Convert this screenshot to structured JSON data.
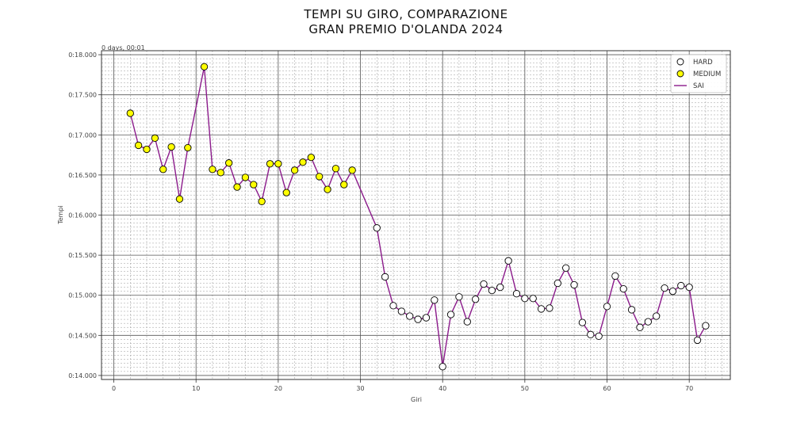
{
  "chart_data": {
    "type": "line",
    "title_line1": "TEMPI SU GIRO, COMPARAZIONE",
    "title_line2": "GRAN PREMIO D'OLANDA 2024",
    "xlabel": "Giri",
    "ylabel": "Tempi",
    "offset_label": "0 days, 00:01",
    "xlim": [
      -1.5,
      75
    ],
    "ylim": [
      13.95,
      18.05
    ],
    "x_ticks": [
      0,
      10,
      20,
      30,
      40,
      50,
      60,
      70
    ],
    "y_ticks": [
      14.0,
      14.5,
      15.0,
      15.5,
      16.0,
      16.5,
      17.0,
      17.5,
      18.0
    ],
    "y_tick_labels": [
      "0:14.000",
      "0:14.500",
      "0:15.000",
      "0:15.500",
      "0:16.000",
      "0:16.500",
      "0:17.000",
      "0:17.500",
      "0:18.000"
    ],
    "grid": true,
    "minor_grid": true,
    "legend_position": "top-right",
    "legend": [
      {
        "label": "HARD",
        "kind": "marker",
        "fill": "#ffffff"
      },
      {
        "label": "MEDIUM",
        "kind": "marker",
        "fill": "#ffff00"
      },
      {
        "label": "SAI",
        "kind": "line",
        "color": "#8b1a8b"
      }
    ],
    "line_color": "#8b1a8b",
    "series": [
      {
        "name": "MEDIUM",
        "color": "#ffff00",
        "x": [
          2,
          3,
          4,
          5,
          6,
          7,
          8,
          9,
          11,
          12,
          13,
          14,
          15,
          16,
          17,
          18,
          19,
          20,
          21,
          22,
          23,
          24,
          25,
          26,
          27,
          28,
          29
        ],
        "y": [
          17.27,
          16.87,
          16.82,
          16.96,
          16.57,
          16.85,
          16.2,
          16.84,
          17.85,
          16.57,
          16.53,
          16.65,
          16.35,
          16.47,
          16.38,
          16.17,
          16.64,
          16.64,
          16.28,
          16.56,
          16.66,
          16.72,
          16.48,
          16.32,
          16.58,
          16.38,
          16.56
        ]
      },
      {
        "name": "HARD",
        "color": "#ffffff",
        "x": [
          32,
          33,
          34,
          35,
          36,
          37,
          38,
          39,
          40,
          41,
          42,
          43,
          44,
          45,
          46,
          47,
          48,
          49,
          50,
          51,
          52,
          53,
          54,
          55,
          56,
          57,
          58,
          59,
          60,
          61,
          62,
          63,
          64,
          65,
          66,
          67,
          68,
          69,
          70,
          71,
          72
        ],
        "y": [
          15.84,
          15.23,
          14.87,
          14.8,
          14.74,
          14.7,
          14.72,
          14.94,
          14.11,
          14.76,
          14.98,
          14.67,
          14.95,
          15.14,
          15.06,
          15.1,
          15.43,
          15.02,
          14.96,
          14.96,
          14.83,
          14.84,
          15.15,
          15.34,
          15.13,
          14.66,
          14.51,
          14.49,
          14.86,
          15.24,
          15.08,
          14.82,
          14.6,
          14.67,
          14.74,
          15.09,
          15.05,
          15.12,
          15.1,
          14.44,
          14.62
        ]
      }
    ]
  }
}
